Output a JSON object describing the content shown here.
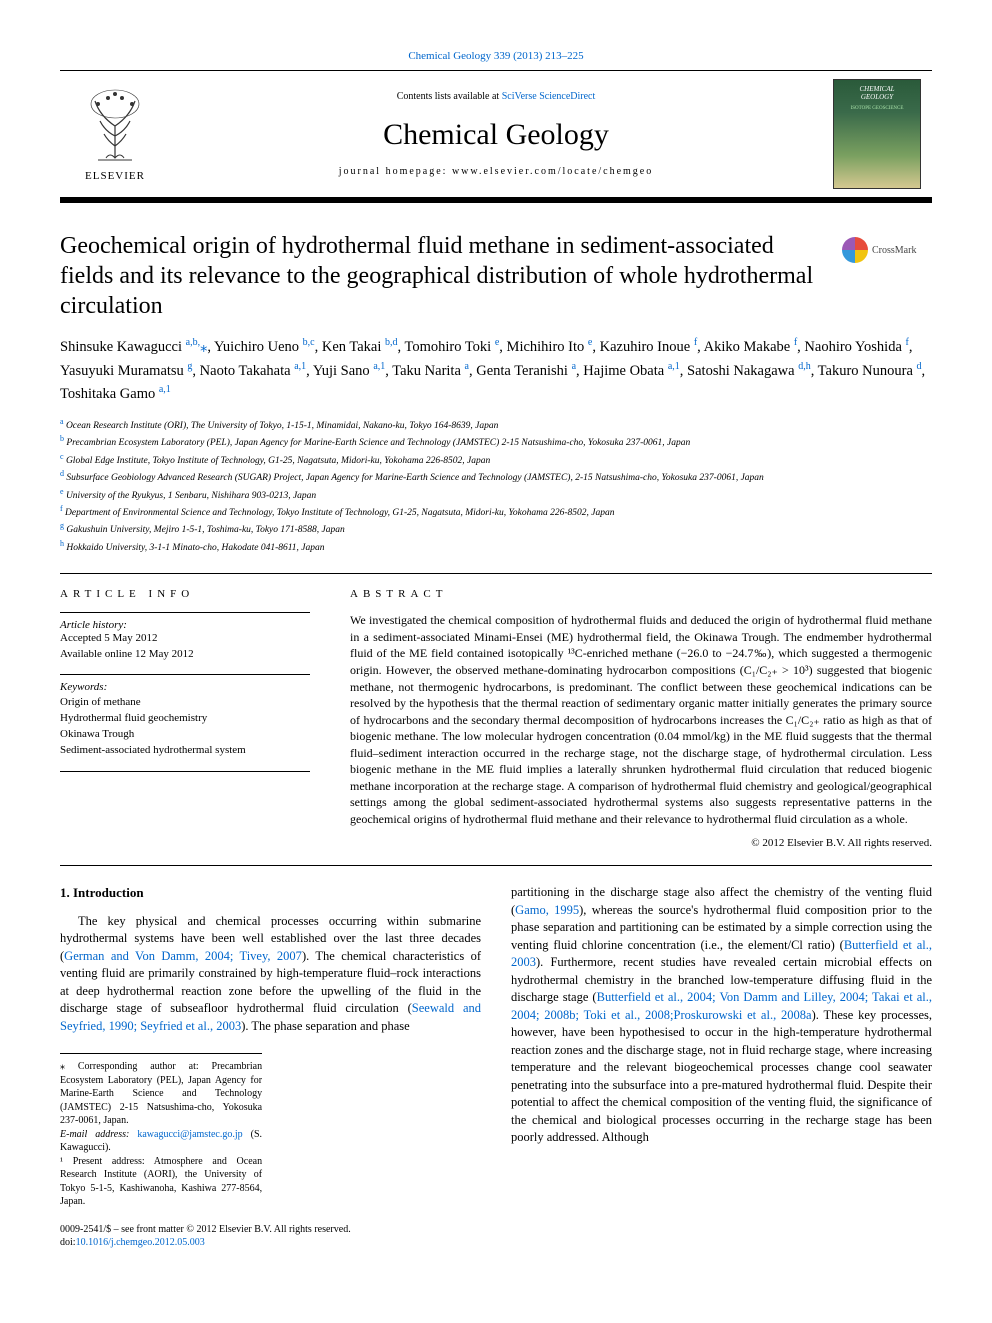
{
  "top_link_text": "Chemical Geology 339 (2013) 213–225",
  "header": {
    "contents_prefix": "Contents lists available at ",
    "contents_link": "SciVerse ScienceDirect",
    "journal": "Chemical Geology",
    "homepage_prefix": "journal homepage: ",
    "homepage": "www.elsevier.com/locate/chemgeo",
    "elsevier_label": "ELSEVIER"
  },
  "crossmark_label": "CrossMark",
  "title": "Geochemical origin of hydrothermal fluid methane in sediment-associated fields and its relevance to the geographical distribution of whole hydrothermal circulation",
  "authors_html": "Shinsuke Kawagucci <span class='sup'>a,b,</span><span class='star'>⁎</span>, Yuichiro Ueno <span class='sup'>b,c</span>, Ken Takai <span class='sup'>b,d</span>, Tomohiro Toki <span class='sup'>e</span>, Michihiro Ito <span class='sup'>e</span>, Kazuhiro Inoue <span class='sup'>f</span>, Akiko Makabe <span class='sup'>f</span>, Naohiro Yoshida <span class='sup'>f</span>, Yasuyuki Muramatsu <span class='sup'>g</span>, Naoto Takahata <span class='sup'>a,1</span>, Yuji Sano <span class='sup'>a,1</span>, Taku Narita <span class='sup'>a</span>, Genta Teranishi <span class='sup'>a</span>, Hajime Obata <span class='sup'>a,1</span>, Satoshi Nakagawa <span class='sup'>d,h</span>, Takuro Nunoura <span class='sup'>d</span>, Toshitaka Gamo <span class='sup'>a,1</span>",
  "affiliations": [
    "a Ocean Research Institute (ORI), The University of Tokyo, 1-15-1, Minamidai, Nakano-ku, Tokyo 164-8639, Japan",
    "b Precambrian Ecosystem Laboratory (PEL), Japan Agency for Marine-Earth Science and Technology (JAMSTEC) 2-15 Natsushima-cho, Yokosuka 237-0061, Japan",
    "c Global Edge Institute, Tokyo Institute of Technology, G1-25, Nagatsuta, Midori-ku, Yokohama 226-8502, Japan",
    "d Subsurface Geobiology Advanced Research (SUGAR) Project, Japan Agency for Marine-Earth Science and Technology (JAMSTEC), 2-15 Natsushima-cho, Yokosuka 237-0061, Japan",
    "e University of the Ryukyus, 1 Senbaru, Nishihara 903-0213, Japan",
    "f Department of Environmental Science and Technology, Tokyo Institute of Technology, G1-25, Nagatsuta, Midori-ku, Yokohama 226-8502, Japan",
    "g Gakushuin University, Mejiro 1-5-1, Toshima-ku, Tokyo 171-8588, Japan",
    "h Hokkaido University, 3-1-1 Minato-cho, Hakodate 041-8611, Japan"
  ],
  "article_info": {
    "heading": "ARTICLE INFO",
    "history_head": "Article history:",
    "accepted": "Accepted 5 May 2012",
    "online": "Available online 12 May 2012",
    "keywords_head": "Keywords:",
    "keywords": [
      "Origin of methane",
      "Hydrothermal fluid geochemistry",
      "Okinawa Trough",
      "Sediment-associated hydrothermal system"
    ]
  },
  "abstract": {
    "heading": "ABSTRACT",
    "body": "We investigated the chemical composition of hydrothermal fluids and deduced the origin of hydrothermal fluid methane in a sediment-associated Minami-Ensei (ME) hydrothermal field, the Okinawa Trough. The endmember hydrothermal fluid of the ME field contained isotopically ¹³C-enriched methane (−26.0 to −24.7‰), which suggested a thermogenic origin. However, the observed methane-dominating hydrocarbon compositions (C₁/C₂₊ > 10³) suggested that biogenic methane, not thermogenic hydrocarbons, is predominant. The conflict between these geochemical indications can be resolved by the hypothesis that the thermal reaction of sedimentary organic matter initially generates the primary source of hydrocarbons and the secondary thermal decomposition of hydrocarbons increases the C₁/C₂₊ ratio as high as that of biogenic methane. The low molecular hydrogen concentration (0.04 mmol/kg) in the ME fluid suggests that the thermal fluid–sediment interaction occurred in the recharge stage, not the discharge stage, of hydrothermal circulation. Less biogenic methane in the ME fluid implies a laterally shrunken hydrothermal fluid circulation that reduced biogenic methane incorporation at the recharge stage. A comparison of hydrothermal fluid chemistry and geological/geographical settings among the global sediment-associated hydrothermal systems also suggests representative patterns in the geochemical origins of hydrothermal fluid methane and their relevance to hydrothermal fluid circulation as a whole.",
    "copyright": "© 2012 Elsevier B.V. All rights reserved."
  },
  "intro": {
    "heading": "1. Introduction",
    "col1": "The key physical and chemical processes occurring within submarine hydrothermal systems have been well established over the last three decades (German and Von Damm, 2004; Tivey, 2007). The chemical characteristics of venting fluid are primarily constrained by high-temperature fluid–rock interactions at deep hydrothermal reaction zone before the upwelling of the fluid in the discharge stage of subseafloor hydrothermal fluid circulation (Seewald and Seyfried, 1990; Seyfried et al., 2003). The phase separation and phase",
    "col2": "partitioning in the discharge stage also affect the chemistry of the venting fluid (Gamo, 1995), whereas the source's hydrothermal fluid composition prior to the phase separation and partitioning can be estimated by a simple correction using the venting fluid chlorine concentration (i.e., the element/Cl ratio) (Butterfield et al., 2003). Furthermore, recent studies have revealed certain microbial effects on hydrothermal chemistry in the branched low-temperature diffusing fluid in the discharge stage (Butterfield et al., 2004; Von Damm and Lilley, 2004; Takai et al., 2004; 2008b; Toki et al., 2008;Proskurowski et al., 2008a). These key processes, however, have been hypothesised to occur in the high-temperature hydrothermal reaction zones and the discharge stage, not in fluid recharge stage, where increasing temperature and the relevant biogeochemical processes change cool seawater penetrating into the subsurface into a pre-matured hydrothermal fluid. Despite their potential to affect the chemical composition of the venting fluid, the significance of the chemical and biological processes occurring in the recharge stage has been poorly addressed. Although"
  },
  "footnotes": {
    "corr": "⁎ Corresponding author at: Precambrian Ecosystem Laboratory (PEL), Japan Agency for Marine-Earth Science and Technology (JAMSTEC) 2-15 Natsushima-cho, Yokosuka 237-0061, Japan.",
    "email_label": "E-mail address: ",
    "email": "kawagucci@jamstec.go.jp",
    "email_suffix": " (S. Kawagucci).",
    "present": "¹ Present address: Atmosphere and Ocean Research Institute (AORI), the University of Tokyo 5-1-5, Kashiwanoha, Kashiwa 277-8564, Japan."
  },
  "doi": {
    "line1": "0009-2541/$ – see front matter © 2012 Elsevier B.V. All rights reserved.",
    "prefix": "doi:",
    "link": "10.1016/j.chemgeo.2012.05.003"
  },
  "colors": {
    "link": "#0066cc",
    "text": "#000000",
    "background": "#ffffff"
  }
}
